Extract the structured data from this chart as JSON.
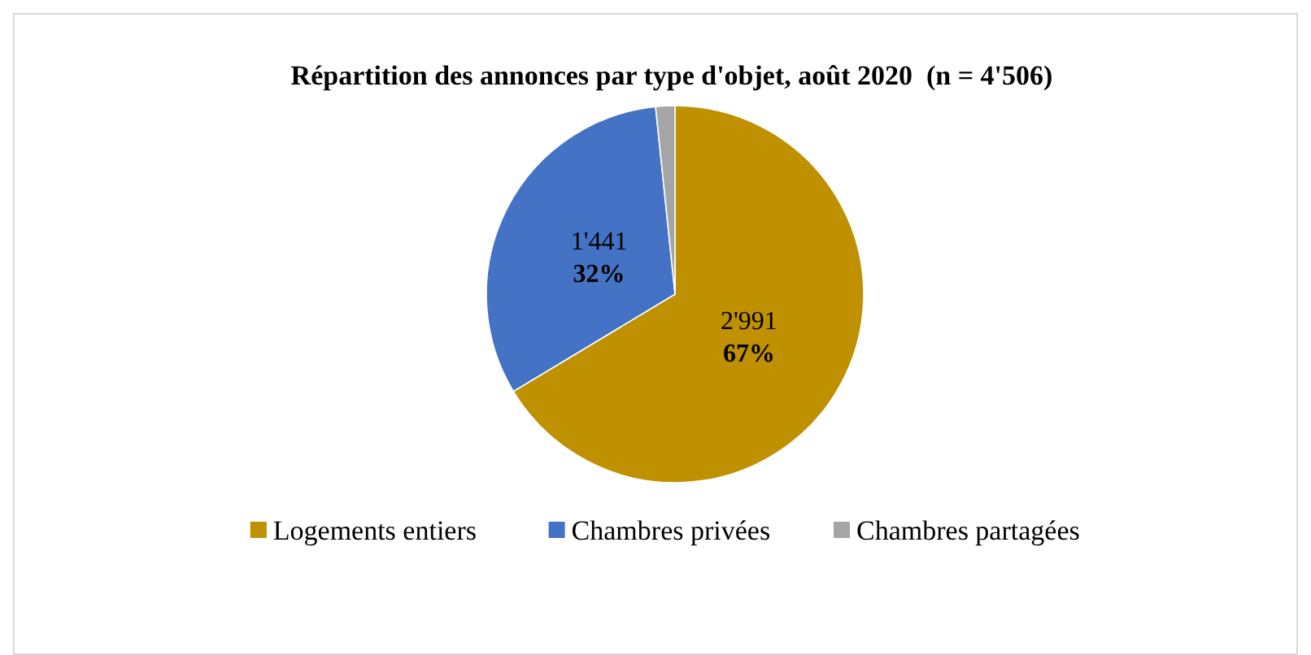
{
  "chart_data": {
    "type": "pie",
    "title": "Répartition des annonces par type d'objet, août 2020  (n = 4'506)",
    "categories": [
      "Logements entiers",
      "Chambres privées",
      "Chambres partagées"
    ],
    "values": [
      2991,
      1441,
      74
    ],
    "colors": [
      "#bf9000",
      "#4472c4",
      "#a5a5a5"
    ],
    "value_labels": [
      "2'991\n67%",
      "1'441\n32%",
      null
    ],
    "legend": "bottom"
  }
}
